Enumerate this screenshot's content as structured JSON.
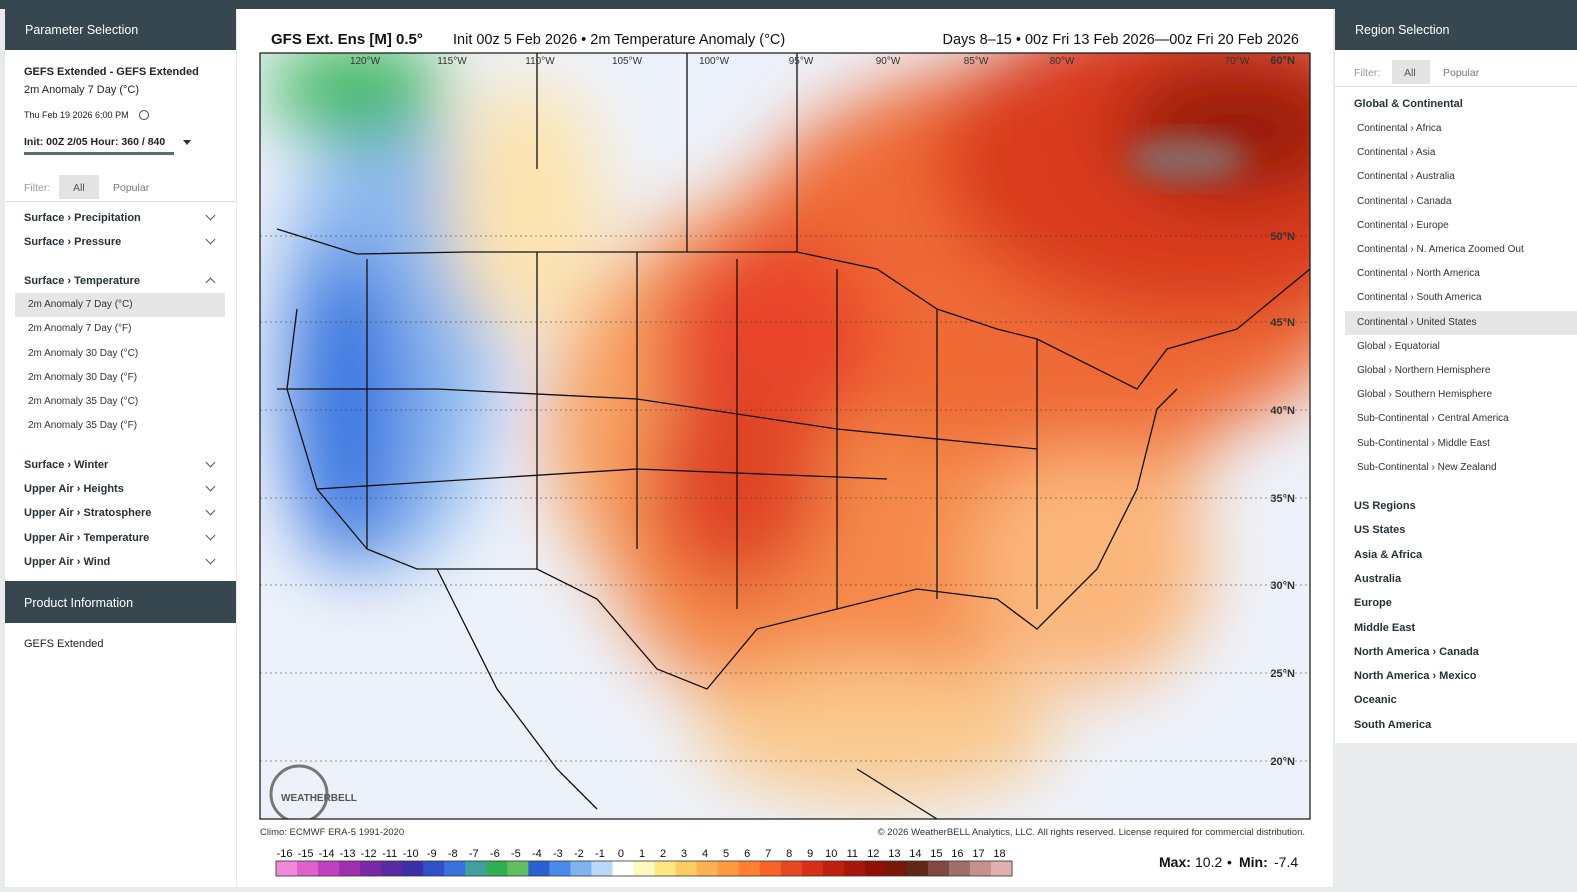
{
  "left_panel": {
    "title": "Parameter Selection",
    "product": "GEFS Extended - GEFS Extended",
    "parameter": "2m Anomaly 7 Day (°C)",
    "valid_time": "Thu Feb 19 2026 6:00 PM",
    "init": "Init: 00Z 2/05  Hour: 360 / 840",
    "filter": {
      "label": "Filter:",
      "options": [
        "All",
        "Popular"
      ]
    },
    "groups": [
      {
        "name": "Surface › Precipitation"
      },
      {
        "name": "Surface › Pressure"
      },
      {
        "name": "Surface › Temperature",
        "items": [
          "2m Anomaly 7 Day (°C)",
          "2m Anomaly 7 Day (°F)",
          "2m Anomaly 30 Day (°C)",
          "2m Anomaly 30 Day (°F)",
          "2m Anomaly 35 Day (°C)",
          "2m Anomaly 35 Day (°F)"
        ]
      },
      {
        "name": "Surface › Winter"
      },
      {
        "name": "Upper Air › Heights"
      },
      {
        "name": "Upper Air › Stratosphere"
      },
      {
        "name": "Upper Air › Temperature"
      },
      {
        "name": "Upper Air › Wind"
      }
    ],
    "info_title": "Product Information",
    "info_text": "GEFS Extended"
  },
  "map": {
    "title_left": "GFS Ext.  Ens [M] 0.5°",
    "title_init": "Init 00z 5 Feb 2026 • 2m Temperature Anomaly (°C)",
    "title_right": "Days 8–15 • 00z Fri 13 Feb 2026—00z Fri 20 Feb 2026",
    "lon_labels": [
      "120°W",
      "115°W",
      "110°W",
      "105°W",
      "100°W",
      "95°W",
      "90°W",
      "85°W",
      "80°W",
      "70°W"
    ],
    "lat_labels": [
      "60°N",
      "50°N",
      "45°N",
      "40°N",
      "35°N",
      "30°N",
      "25°N",
      "20°N"
    ],
    "logo": "WEATHERBELL",
    "climo": "Climo: ECMWF ERA-5 1991-2020",
    "copyright": "© 2026 WeatherBELL Analytics, LLC. All rights reserved. License required for commercial distribution.",
    "colorbar": {
      "labels": [
        -16,
        -15,
        -14,
        -13,
        -12,
        -11,
        -10,
        -9,
        -8,
        -7,
        -6,
        -5,
        -4,
        -3,
        -2,
        -1,
        0,
        1,
        2,
        3,
        4,
        5,
        6,
        7,
        8,
        9,
        10,
        11,
        12,
        13,
        14,
        15,
        16,
        17,
        18
      ],
      "colors": [
        "#f08ad8",
        "#e060cc",
        "#c040c0",
        "#a030b0",
        "#7a2aa8",
        "#5a2aa0",
        "#3a30a8",
        "#3050c8",
        "#3a70e0",
        "#40a0a0",
        "#30b050",
        "#60c060",
        "#2a60d0",
        "#4a8ae8",
        "#80b4f0",
        "#bcd8f8",
        "#ffffff",
        "#fff8c0",
        "#ffe680",
        "#ffcc60",
        "#ffb050",
        "#ff9a40",
        "#ff8030",
        "#f86428",
        "#e84820",
        "#d83018",
        "#c02010",
        "#a81808",
        "#901008",
        "#781808",
        "#602818",
        "#804840",
        "#a07068",
        "#c8908c",
        "#e0b0b0"
      ]
    },
    "max_label": "Max:",
    "max_value": "10.2",
    "sep": "•",
    "min_label": "Min:",
    "min_value": "-7.4"
  },
  "right_panel": {
    "title": "Region Selection",
    "filter": {
      "label": "Filter:",
      "options": [
        "All",
        "Popular"
      ]
    },
    "group_title": "Global & Continental",
    "items": [
      "Continental › Africa",
      "Continental › Asia",
      "Continental › Australia",
      "Continental › Canada",
      "Continental › Europe",
      "Continental › N. America Zoomed Out",
      "Continental › North America",
      "Continental › South America",
      "Continental › United States",
      "Global › Equatorial",
      "Global › Northern Hemisphere",
      "Global › Southern Hemisphere",
      "Sub-Continental › Central America",
      "Sub-Continental › Middle East",
      "Sub-Continental › New Zealand"
    ],
    "groups": [
      "US Regions",
      "US States",
      "Asia & Africa",
      "Australia",
      "Europe",
      "Middle East",
      "North America › Canada",
      "North America › Mexico",
      "Oceanic",
      "South America"
    ]
  }
}
